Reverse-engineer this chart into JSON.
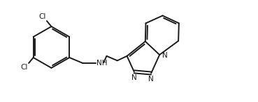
{
  "bg_color": "#ffffff",
  "line_color": "#1a1a1a",
  "line_width": 1.4,
  "font_size": 7.5,
  "label_color": "#1a1a1a",
  "figsize": [
    3.69,
    1.47
  ],
  "dpi": 100,
  "xlim": [
    0,
    10
  ],
  "ylim": [
    0,
    4
  ]
}
